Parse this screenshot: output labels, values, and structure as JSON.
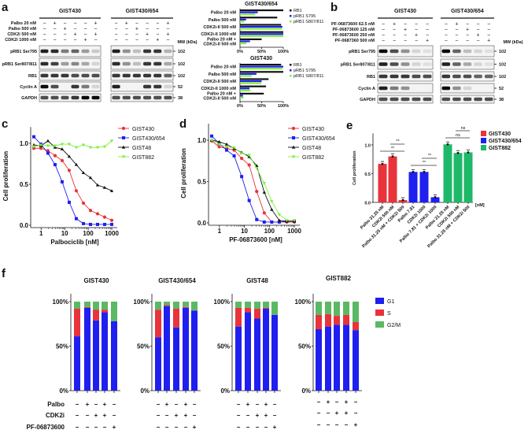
{
  "panel_labels": [
    "a",
    "b",
    "c",
    "d",
    "e",
    "f"
  ],
  "colors": {
    "red": "#e8333a",
    "blue": "#1f1ff0",
    "black": "#111111",
    "lime": "#7ef03a",
    "teal": "#1fb86b",
    "fgreen": "#5bb864"
  },
  "blots": {
    "mw_header": "MW (kDa)",
    "rows": [
      "pRB1 Ser795",
      "pRB1 Ser807/811",
      "RB1",
      "Cyclin A",
      "GAPDH"
    ],
    "mw": [
      "102",
      "102",
      "102",
      "52",
      "38"
    ],
    "a": {
      "treatments": [
        "Palbo 20 nM",
        "Palbo 500 nM",
        "CDK2i 500 nM",
        "CDK2i 1000 nM"
      ],
      "groups": [
        {
          "title": "GIST430",
          "signs": [
            [
              "−",
              "+",
              "−",
              "−",
              "−",
              "+"
            ],
            [
              "−",
              "−",
              "+",
              "−",
              "−",
              "−"
            ],
            [
              "−",
              "−",
              "−",
              "+",
              "−",
              "+"
            ],
            [
              "−",
              "−",
              "−",
              "−",
              "+",
              "−"
            ]
          ],
          "intensity": [
            [
              0.9,
              0.85,
              0.5,
              0.6,
              0.35,
              0.15
            ],
            [
              0.85,
              0.75,
              0.35,
              0.45,
              0.3,
              0.1
            ],
            [
              0.8,
              0.8,
              0.8,
              0.7,
              0.7,
              0.7
            ],
            [
              1,
              0.7,
              0,
              0.8,
              0.5,
              0.1
            ],
            [
              0.7,
              0.7,
              0.7,
              0.8,
              1,
              1
            ]
          ]
        },
        {
          "title": "GIST430/654",
          "signs": [
            [
              "−",
              "+",
              "−",
              "−",
              "−",
              "+"
            ],
            [
              "−",
              "−",
              "+",
              "−",
              "−",
              "−"
            ],
            [
              "−",
              "−",
              "−",
              "+",
              "−",
              "+"
            ],
            [
              "−",
              "−",
              "−",
              "−",
              "+",
              "−"
            ]
          ],
          "intensity": [
            [
              0.9,
              0.4,
              0.2,
              0.8,
              0.8,
              0.25
            ],
            [
              0.85,
              0.4,
              0.2,
              0.8,
              0.8,
              0.3
            ],
            [
              0.8,
              0.8,
              0.8,
              0.8,
              0.8,
              0.6
            ],
            [
              0.9,
              0,
              0,
              0.8,
              0.8,
              0.1
            ],
            [
              0.7,
              0.7,
              0.7,
              0.7,
              0.7,
              0.7
            ]
          ]
        }
      ]
    },
    "b": {
      "treatments": [
        "PF-06873600 62.5 nM",
        "PF-06873600 125 nM",
        "PF-06873600 250 nM",
        "PF-0687360 500 nM"
      ],
      "groups": [
        {
          "title": "GIST430",
          "signs": [
            [
              "−",
              "+",
              "−",
              "−",
              "−"
            ],
            [
              "−",
              "−",
              "+",
              "−",
              "−"
            ],
            [
              "−",
              "−",
              "−",
              "+",
              "−"
            ],
            [
              "−",
              "−",
              "−",
              "−",
              "+"
            ]
          ],
          "intensity": [
            [
              1,
              0.7,
              0.4,
              0.1,
              0.05
            ],
            [
              0.9,
              0.7,
              0.4,
              0.1,
              0.05
            ],
            [
              0.8,
              0.8,
              0.8,
              0.7,
              0.7
            ],
            [
              0.9,
              0.5,
              0.4,
              0,
              0
            ],
            [
              0.7,
              0.7,
              0.7,
              0.7,
              0.7
            ]
          ]
        },
        {
          "title": "GIST430/654",
          "signs": [
            [
              "−",
              "+",
              "−",
              "−",
              "−"
            ],
            [
              "−",
              "−",
              "+",
              "−",
              "−"
            ],
            [
              "−",
              "−",
              "−",
              "+",
              "−"
            ],
            [
              "−",
              "−",
              "−",
              "−",
              "+"
            ]
          ],
          "intensity": [
            [
              1,
              0.6,
              0.2,
              0.1,
              0.05
            ],
            [
              0.9,
              0.6,
              0.3,
              0.1,
              0.05
            ],
            [
              0.8,
              0.7,
              0.7,
              0.6,
              0.6
            ],
            [
              1,
              0.4,
              0.1,
              0,
              0
            ],
            [
              0.7,
              0.7,
              0.7,
              0.7,
              0.7
            ]
          ]
        }
      ]
    }
  },
  "chart_data": [
    {
      "id": "a-quant-654",
      "type": "bar",
      "orientation": "horizontal",
      "title": "GIST430/654",
      "categories": [
        "Palbo 20 nM",
        "Palbo 500 nM",
        "CDK2i-II 500 nM",
        "CDK2i-II 1000 nM",
        "Palbo 20 nM +|CDK2i-II 500 nM"
      ],
      "xticks": [
        "0%",
        "50%",
        "100%"
      ],
      "xlim": [
        0,
        100
      ],
      "series": [
        {
          "name": "RB1",
          "color": "black",
          "values": [
            100,
            86,
            95,
            100,
            50
          ]
        },
        {
          "name": "pRB1 S795",
          "color": "blue",
          "values": [
            41,
            14,
            98,
            100,
            23
          ]
        },
        {
          "name": "pRB1 S807/811",
          "color": "lime",
          "values": [
            35,
            10,
            97,
            100,
            15
          ]
        }
      ]
    },
    {
      "id": "a-quant-430",
      "type": "bar",
      "orientation": "horizontal",
      "title": "GIST430",
      "categories": [
        "Palbo 20 nM",
        "Palbo 500 nM",
        "CDK2i-II 500 nM",
        "CDK2i-II 1000 nM",
        "Palbo 20 nM +|CDK2i-II 500 nM"
      ],
      "xticks": [
        "0%",
        "50%",
        "100%"
      ],
      "xlim": [
        0,
        100
      ],
      "series": [
        {
          "name": "RB1",
          "color": "black",
          "values": [
            95,
            100,
            66,
            60,
            55
          ]
        },
        {
          "name": "pRB1 S795",
          "color": "blue",
          "values": [
            100,
            38,
            50,
            22,
            7
          ]
        },
        {
          "name": "pRB1 S807/811",
          "color": "lime",
          "values": [
            98,
            27,
            49,
            24,
            8
          ]
        }
      ]
    },
    {
      "id": "c",
      "type": "line",
      "xscale": "log",
      "xlabel": "Palbociclib [nM]",
      "ylabel": "Cell proliferation",
      "ylim": [
        0,
        1.2
      ],
      "yticks": [
        "0.0",
        "0.5",
        "1.0"
      ],
      "xticks": [
        "1",
        "10",
        "100",
        "1000"
      ],
      "x": [
        0.49,
        0.98,
        1.95,
        3.9,
        7.8,
        15.6,
        31.25,
        62.5,
        125,
        250,
        500,
        1000
      ],
      "series": [
        {
          "name": "GIST430",
          "color": "red",
          "marker": "circle",
          "values": [
            0.94,
            0.94,
            0.91,
            0.85,
            0.79,
            0.67,
            0.42,
            0.27,
            0.18,
            0.14,
            0.1,
            0.06
          ]
        },
        {
          "name": "GIST430/654",
          "color": "blue",
          "marker": "square",
          "values": [
            1.08,
            0.99,
            0.88,
            0.74,
            0.53,
            0.28,
            0.08,
            0.02,
            0.01,
            0.01,
            0.01,
            0.01
          ]
        },
        {
          "name": "GIST48",
          "color": "black",
          "marker": "triangle",
          "values": [
            0.98,
            0.97,
            1.03,
            0.95,
            0.93,
            0.84,
            0.74,
            0.64,
            0.58,
            0.49,
            0.46,
            0.42
          ]
        },
        {
          "name": "GIST882",
          "color": "lime",
          "marker": "triangle-down",
          "values": [
            0.96,
            0.98,
            0.97,
            0.97,
            0.99,
            0.99,
            0.95,
            0.98,
            0.95,
            0.95,
            0.96,
            1.03
          ]
        }
      ]
    },
    {
      "id": "d",
      "type": "line",
      "xscale": "log",
      "xlabel": "PF-06873600 [nM]",
      "ylabel": "Cell proliferation",
      "ylim": [
        0,
        1.2
      ],
      "yticks": [
        "0.0",
        "0.5",
        "1.0"
      ],
      "xticks": [
        "1",
        "10",
        "100",
        "1000"
      ],
      "x": [
        0.49,
        0.98,
        1.95,
        3.9,
        7.8,
        15.6,
        31.25,
        62.5,
        125,
        250,
        500,
        1000
      ],
      "series": [
        {
          "name": "GIST430",
          "color": "red",
          "marker": "circle",
          "values": [
            0.99,
            0.92,
            0.9,
            0.88,
            0.78,
            0.7,
            0.38,
            0.12,
            0.01,
            0.01,
            0.01,
            0.01
          ]
        },
        {
          "name": "GIST430/654",
          "color": "blue",
          "marker": "square",
          "values": [
            1.05,
            0.96,
            0.88,
            0.81,
            0.56,
            0.27,
            0.04,
            0.01,
            0.01,
            0.01,
            0.02,
            0.02
          ]
        },
        {
          "name": "GIST48",
          "color": "black",
          "marker": "triangle",
          "values": [
            1.0,
            0.98,
            0.95,
            0.9,
            0.85,
            0.8,
            0.69,
            0.37,
            0.16,
            0.03,
            0.02,
            0.02
          ]
        },
        {
          "name": "GIST882",
          "color": "lime",
          "marker": "triangle-down",
          "values": [
            1.0,
            0.95,
            0.92,
            0.91,
            0.84,
            0.82,
            0.66,
            0.48,
            0.26,
            0.1,
            0.03,
            0.03
          ]
        }
      ]
    },
    {
      "id": "e",
      "type": "bar",
      "ylabel": "Cell proliferation",
      "ylim": [
        0,
        1.2
      ],
      "yticks": [
        "0.0",
        "0.5",
        "1.0"
      ],
      "unit_label": "[nM]",
      "categories": [
        "Palbo 31.25 nM",
        "CDK2i 500 nM",
        "Palbo 31.25 nM + CDK2i 500",
        "Palbo 7.81",
        "CDK2i 1000",
        "Palbo 7.81 + CDK2i 1000",
        "Palbo 31.25 nM",
        "CDK2i 500 nM",
        "Palbo 31.25 nM + CDK2i 500"
      ],
      "values": [
        0.67,
        0.8,
        0.04,
        0.53,
        0.53,
        0.09,
        1.01,
        0.86,
        0.87
      ],
      "groups": [
        {
          "name": "GIST430",
          "color": "red",
          "indices": [
            0,
            1,
            2
          ]
        },
        {
          "name": "GIST430/654",
          "color": "blue",
          "indices": [
            3,
            4,
            5
          ]
        },
        {
          "name": "GIST882",
          "color": "teal",
          "indices": [
            6,
            7,
            8
          ]
        }
      ],
      "annotations": [
        {
          "from": 0,
          "to": 2,
          "text": "**",
          "level": 0
        },
        {
          "from": 1,
          "to": 2,
          "text": "**",
          "level": 1
        },
        {
          "from": 3,
          "to": 5,
          "text": "**",
          "level": 0
        },
        {
          "from": 4,
          "to": 5,
          "text": "**",
          "level": 1
        },
        {
          "from": 6,
          "to": 8,
          "text": "ns",
          "level": 0
        },
        {
          "from": 7,
          "to": 8,
          "text": "ns",
          "level": 1
        }
      ]
    },
    {
      "id": "f",
      "type": "stacked-bar",
      "yticks": [
        "0%",
        "50%",
        "100%"
      ],
      "ylim": [
        0,
        100
      ],
      "legend": [
        {
          "name": "G1",
          "color": "blue"
        },
        {
          "name": "S",
          "color": "red"
        },
        {
          "name": "G2/M",
          "color": "fgreen"
        }
      ],
      "treatment_labels": [
        "Palbo",
        "CDK2i",
        "PF-06873600"
      ],
      "treatment_signs": [
        [
          "−",
          "+",
          "−",
          "+",
          "−"
        ],
        [
          "−",
          "−",
          "+",
          "+",
          "−"
        ],
        [
          "−",
          "−",
          "−",
          "−",
          "+"
        ]
      ],
      "panels": [
        {
          "title": "GIST430",
          "values": [
            [
              61,
              31,
              8
            ],
            [
              93,
              1,
              6
            ],
            [
              79,
              12,
              9
            ],
            [
              88,
              3,
              9
            ],
            [
              78,
              0,
              22
            ]
          ]
        },
        {
          "title": "GIST430/654",
          "values": [
            [
              60,
              31,
              9
            ],
            [
              95,
              1,
              4
            ],
            [
              71,
              21,
              8
            ],
            [
              93,
              1,
              6
            ],
            [
              90,
              0,
              10
            ]
          ]
        },
        {
          "title": "GIST48",
          "values": [
            [
              72,
              21,
              7
            ],
            [
              88,
              5,
              7
            ],
            [
              81,
              11,
              8
            ],
            [
              92,
              1,
              7
            ],
            [
              85,
              0,
              15
            ]
          ]
        },
        {
          "title": "GIST882",
          "values": [
            [
              69,
              16,
              15
            ],
            [
              72,
              14,
              14
            ],
            [
              74,
              10,
              16
            ],
            [
              74,
              11,
              15
            ],
            [
              68,
              9,
              23
            ]
          ]
        }
      ]
    }
  ]
}
